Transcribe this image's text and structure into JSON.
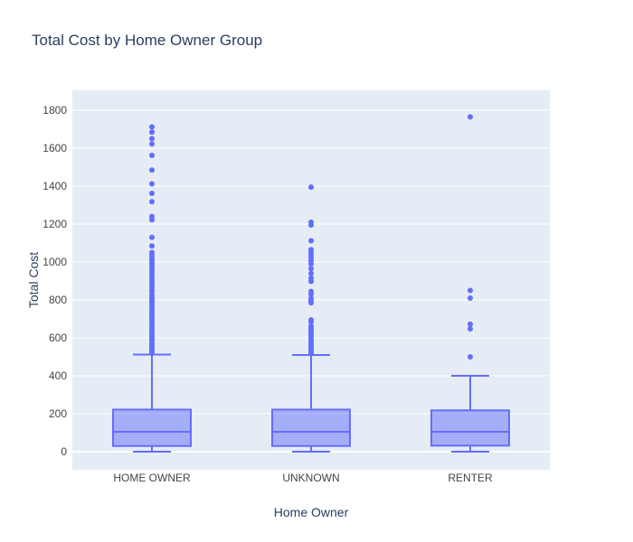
{
  "chart_data": {
    "type": "box",
    "title": "Total Cost by Home Owner Group",
    "xlabel": "Home Owner",
    "ylabel": "Total Cost",
    "ylim": [
      -95,
      1905
    ],
    "yticks": [
      0,
      200,
      400,
      600,
      800,
      1000,
      1200,
      1400,
      1600,
      1800
    ],
    "grid": true,
    "categories": [
      "HOME OWNER",
      "UNKNOWN",
      "RENTER"
    ],
    "boxes": [
      {
        "category": "HOME OWNER",
        "min": 0,
        "q1": 30,
        "median": 105,
        "q3": 222,
        "upper_fence": 512,
        "outliers": [
          1712,
          1685,
          1650,
          1622,
          1562,
          1485,
          1412,
          1362,
          1318,
          1240,
          1222,
          1130,
          1085,
          1050,
          1035,
          1022,
          1008,
          995,
          980,
          968,
          955,
          940,
          925,
          908,
          895,
          882,
          868,
          852,
          840,
          822,
          810,
          798,
          785,
          772,
          760,
          748,
          735,
          722,
          710,
          698,
          685,
          672,
          660,
          648,
          636,
          625,
          612,
          600,
          590,
          578,
          566,
          555,
          545,
          535,
          525,
          518
        ]
      },
      {
        "category": "UNKNOWN",
        "min": 0,
        "q1": 30,
        "median": 105,
        "q3": 222,
        "upper_fence": 510,
        "outliers": [
          1395,
          1210,
          1195,
          1112,
          1065,
          1048,
          1035,
          1022,
          1005,
          990,
          965,
          940,
          915,
          898,
          845,
          830,
          808,
          795,
          785,
          695,
          685,
          662,
          650,
          640,
          628,
          612,
          598,
          585,
          572,
          560,
          548,
          538,
          528,
          518
        ]
      },
      {
        "category": "RENTER",
        "min": 0,
        "q1": 32,
        "median": 105,
        "q3": 218,
        "upper_fence": 400,
        "outliers": [
          1765,
          850,
          810,
          672,
          648,
          500
        ]
      }
    ],
    "colors": {
      "box": "#636efa",
      "fill": "rgba(99,110,250,0.5)",
      "plot_bg": "#e5ecf6",
      "grid": "#ffffff"
    }
  }
}
